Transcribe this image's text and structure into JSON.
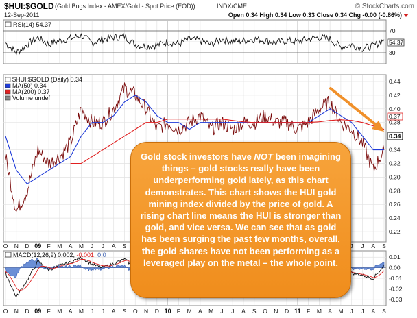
{
  "header": {
    "symbol": "$HUI:$GOLD",
    "description": "(Gold Bugs Index - AMEX/Gold - Spot Price (EOD))",
    "exchange": "INDX/CME",
    "date": "12-Sep-2011",
    "brand": "© StockCharts.com",
    "quote": "Open 0.34  High 0.34  Low 0.33  Close 0.34  Chg -0.00 (-0.86%)"
  },
  "rsi_panel": {
    "label": "RSI(14) 54.37",
    "current_badge": "54.37",
    "ticks": [
      70,
      50,
      30
    ],
    "levels": {
      "overbought": 70,
      "oversold": 30
    },
    "colors": {
      "line": "#111111",
      "band": "#444444"
    }
  },
  "price_panel": {
    "legend": [
      {
        "text": "$HUI:$GOLD (Daily) 0.34",
        "color": "#000000"
      },
      {
        "text": "MA(50) 0.34",
        "color": "#1f3bd8"
      },
      {
        "text": "MA(200) 0.37",
        "color": "#e02020"
      },
      {
        "text": "Volume undef",
        "color": "#888888"
      }
    ],
    "ticks": [
      "0.44",
      "0.42",
      "0.40",
      "0.38",
      "0.36",
      "0.34",
      "0.32",
      "0.30",
      "0.28",
      "0.26",
      "0.24",
      "0.22"
    ],
    "badges": [
      {
        "text": "0.37",
        "kind": "ma200"
      },
      {
        "text": "0.34",
        "kind": "price"
      }
    ]
  },
  "macd_panel": {
    "label_prefix": "MACD(12,26,9) 0.002, ",
    "label_signal": "-0.001",
    "label_hist": ", 0.0",
    "ticks": [
      "0.01",
      "0.00",
      "-0.01",
      "-0.02",
      "-0.03"
    ]
  },
  "x_axis": {
    "labels": [
      {
        "t": "O",
        "b": false
      },
      {
        "t": "N",
        "b": false
      },
      {
        "t": "D",
        "b": false
      },
      {
        "t": "09",
        "b": true
      },
      {
        "t": "F",
        "b": false
      },
      {
        "t": "M",
        "b": false
      },
      {
        "t": "A",
        "b": false
      },
      {
        "t": "M",
        "b": false
      },
      {
        "t": "J",
        "b": false
      },
      {
        "t": "J",
        "b": false
      },
      {
        "t": "A",
        "b": false
      },
      {
        "t": "S",
        "b": false
      },
      {
        "t": "O",
        "b": false
      },
      {
        "t": "N",
        "b": false
      },
      {
        "t": "D",
        "b": false
      },
      {
        "t": "10",
        "b": true
      },
      {
        "t": "F",
        "b": false
      },
      {
        "t": "M",
        "b": false
      },
      {
        "t": "A",
        "b": false
      },
      {
        "t": "M",
        "b": false
      },
      {
        "t": "J",
        "b": false
      },
      {
        "t": "J",
        "b": false
      },
      {
        "t": "A",
        "b": false
      },
      {
        "t": "S",
        "b": false
      },
      {
        "t": "O",
        "b": false
      },
      {
        "t": "N",
        "b": false
      },
      {
        "t": "D",
        "b": false
      },
      {
        "t": "11",
        "b": true
      },
      {
        "t": "F",
        "b": false
      },
      {
        "t": "M",
        "b": false
      },
      {
        "t": "A",
        "b": false
      },
      {
        "t": "M",
        "b": false
      },
      {
        "t": "J",
        "b": false
      },
      {
        "t": "J",
        "b": false
      },
      {
        "t": "A",
        "b": false
      },
      {
        "t": "S",
        "b": false
      }
    ]
  },
  "callout": {
    "before": "Gold stock investors have ",
    "emph": "NOT",
    "after": " been imagining things – gold stocks really have been underperforming gold lately, as this chart demonstrates. This chart shows the HUI gold mining  index divided by the price of gold. A rising chart line means the HUI is stronger than gold, and vice versa. We can see that as gold has been surging the past few months, overall, the gold shares have not been performing as a leveraged play on the metal – the whole  point."
  },
  "chart_data": {
    "type": "line",
    "x": [
      "2008-10",
      "2008-11",
      "2008-12",
      "2009-01",
      "2009-02",
      "2009-03",
      "2009-04",
      "2009-05",
      "2009-06",
      "2009-07",
      "2009-08",
      "2009-09",
      "2009-10",
      "2009-11",
      "2009-12",
      "2010-01",
      "2010-02",
      "2010-03",
      "2010-04",
      "2010-05",
      "2010-06",
      "2010-07",
      "2010-08",
      "2010-09",
      "2010-10",
      "2010-11",
      "2010-12",
      "2011-01",
      "2011-02",
      "2011-03",
      "2011-04",
      "2011-05",
      "2011-06",
      "2011-07",
      "2011-08",
      "2011-09"
    ],
    "series": [
      {
        "name": "$HUI:$GOLD (Daily) 0.34",
        "values": [
          0.33,
          0.25,
          0.28,
          0.34,
          0.32,
          0.33,
          0.35,
          0.4,
          0.38,
          0.38,
          0.4,
          0.43,
          0.42,
          0.4,
          0.37,
          0.38,
          0.37,
          0.38,
          0.39,
          0.37,
          0.38,
          0.37,
          0.38,
          0.38,
          0.39,
          0.38,
          0.38,
          0.37,
          0.38,
          0.4,
          0.41,
          0.38,
          0.37,
          0.35,
          0.31,
          0.34
        ]
      },
      {
        "name": "MA(50) 0.34",
        "values": [
          0.36,
          0.31,
          0.29,
          0.3,
          0.31,
          0.32,
          0.33,
          0.36,
          0.38,
          0.38,
          0.39,
          0.41,
          0.42,
          0.41,
          0.39,
          0.38,
          0.38,
          0.37,
          0.38,
          0.38,
          0.38,
          0.38,
          0.38,
          0.38,
          0.38,
          0.38,
          0.38,
          0.38,
          0.38,
          0.39,
          0.4,
          0.39,
          0.38,
          0.36,
          0.34,
          0.34
        ]
      },
      {
        "name": "MA(200) 0.37",
        "values": [
          null,
          null,
          null,
          null,
          null,
          null,
          0.32,
          0.32,
          0.33,
          0.34,
          0.35,
          0.36,
          0.37,
          0.38,
          0.38,
          0.385,
          0.385,
          0.385,
          0.385,
          0.385,
          0.385,
          0.383,
          0.381,
          0.38,
          0.38,
          0.38,
          0.38,
          0.38,
          0.38,
          0.381,
          0.383,
          0.384,
          0.383,
          0.38,
          0.375,
          0.37
        ]
      }
    ],
    "rsi": [
      48,
      30,
      45,
      58,
      45,
      52,
      56,
      62,
      48,
      55,
      58,
      60,
      45,
      42,
      44,
      50,
      46,
      55,
      52,
      45,
      55,
      50,
      52,
      55,
      53,
      48,
      52,
      50,
      55,
      58,
      55,
      40,
      45,
      38,
      42,
      54
    ],
    "macd": [
      -0.005,
      -0.028,
      -0.012,
      0.006,
      -0.002,
      0.002,
      0.005,
      0.01,
      0.003,
      0.0,
      0.004,
      0.008,
      0.0,
      -0.004,
      -0.007,
      -0.001,
      -0.003,
      0.002,
      0.003,
      -0.004,
      0.001,
      -0.001,
      0.001,
      0.002,
      0.002,
      -0.001,
      0.0,
      -0.002,
      0.0,
      0.004,
      0.005,
      -0.004,
      -0.005,
      -0.007,
      -0.01,
      0.002
    ],
    "ylim": [
      0.2,
      0.45
    ],
    "grid": true,
    "legend": "top-left"
  }
}
